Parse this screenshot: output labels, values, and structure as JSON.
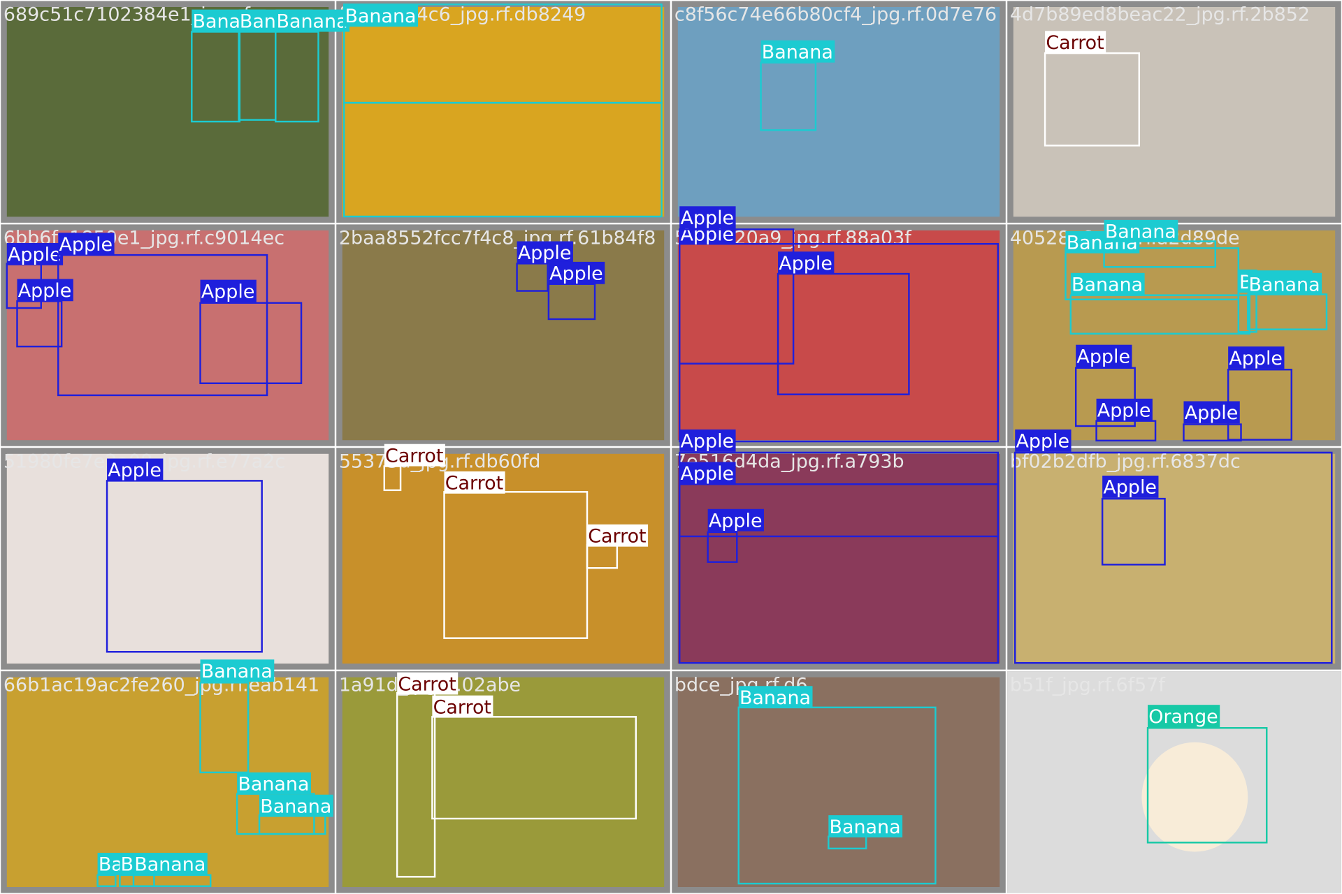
{
  "tiles": [
    {
      "filename": "689c51c7102384e1_jpg.rf",
      "boxes": [
        {
          "label": "Banana"
        },
        {
          "label": "Banana"
        },
        {
          "label": "Banana"
        }
      ]
    },
    {
      "filename": "fff89c5e4c6_jpg.rf.db8249",
      "boxes": [
        {
          "label": "Banana"
        },
        {
          "label": "Banana"
        }
      ]
    },
    {
      "filename": "c8f56c74e66b80cf4_jpg.rf.0d7e76",
      "boxes": [
        {
          "label": "Banana"
        }
      ]
    },
    {
      "filename": "4d7b89ed8beac22_jpg.rf.2b852",
      "boxes": [
        {
          "label": "Carrot"
        }
      ]
    },
    {
      "filename": "6bb6fa1850e1_jpg.rf.c9014ec",
      "boxes": [
        {
          "label": "Apple"
        },
        {
          "label": "Apple"
        },
        {
          "label": "Apple"
        },
        {
          "label": "Apple"
        }
      ]
    },
    {
      "filename": "2baa8552fcc7f4c8_jpg.rf.61b84f8",
      "boxes": [
        {
          "label": "Apple"
        },
        {
          "label": "Apple"
        }
      ]
    },
    {
      "filename": "5026620a9_jpg.rf.88a03f",
      "boxes": [
        {
          "label": "Apple"
        },
        {
          "label": "Apple"
        },
        {
          "label": "Apple"
        }
      ]
    },
    {
      "filename": "40528a6_jpg.rf.a2d89de",
      "boxes": [
        {
          "label": "Banana"
        },
        {
          "label": "Banana"
        },
        {
          "label": "Banana"
        },
        {
          "label": "Banana"
        },
        {
          "label": "Banana"
        },
        {
          "label": "Apple"
        },
        {
          "label": "Apple"
        },
        {
          "label": "Apple"
        },
        {
          "label": "Apple"
        }
      ]
    },
    {
      "filename": "51980fe7e2a08_jpg.rf.e77a2c",
      "boxes": [
        {
          "label": "Apple"
        }
      ]
    },
    {
      "filename": "55373d_jpg.rf.db60fd",
      "boxes": [
        {
          "label": "Carrot"
        },
        {
          "label": "Carrot"
        },
        {
          "label": "Carrot"
        }
      ]
    },
    {
      "filename": "7e516d4da_jpg.rf.a793b",
      "boxes": [
        {
          "label": "Apple"
        },
        {
          "label": "Apple"
        },
        {
          "label": "Apple"
        }
      ]
    },
    {
      "filename": "bf02b2dfb_jpg.rf.6837dc",
      "boxes": [
        {
          "label": "Apple"
        },
        {
          "label": "Apple"
        }
      ]
    },
    {
      "filename": "66b1ac19ac2fe260_jpg.rf.eab141",
      "boxes": [
        {
          "label": "Banana"
        },
        {
          "label": "Banana"
        },
        {
          "label": "Banana"
        },
        {
          "label": "Banana"
        },
        {
          "label": "Banana"
        },
        {
          "label": "Banana"
        }
      ]
    },
    {
      "filename": "1a91d_jpg.rf.02abe",
      "boxes": [
        {
          "label": "Carrot"
        },
        {
          "label": "Carrot"
        }
      ]
    },
    {
      "filename": "bdce_jpg.rf.d6",
      "boxes": [
        {
          "label": "Banana"
        },
        {
          "label": "Banana"
        }
      ]
    },
    {
      "filename": "b51f_jpg.rf.6f57f",
      "boxes": [
        {
          "label": "Orange"
        }
      ]
    }
  ]
}
